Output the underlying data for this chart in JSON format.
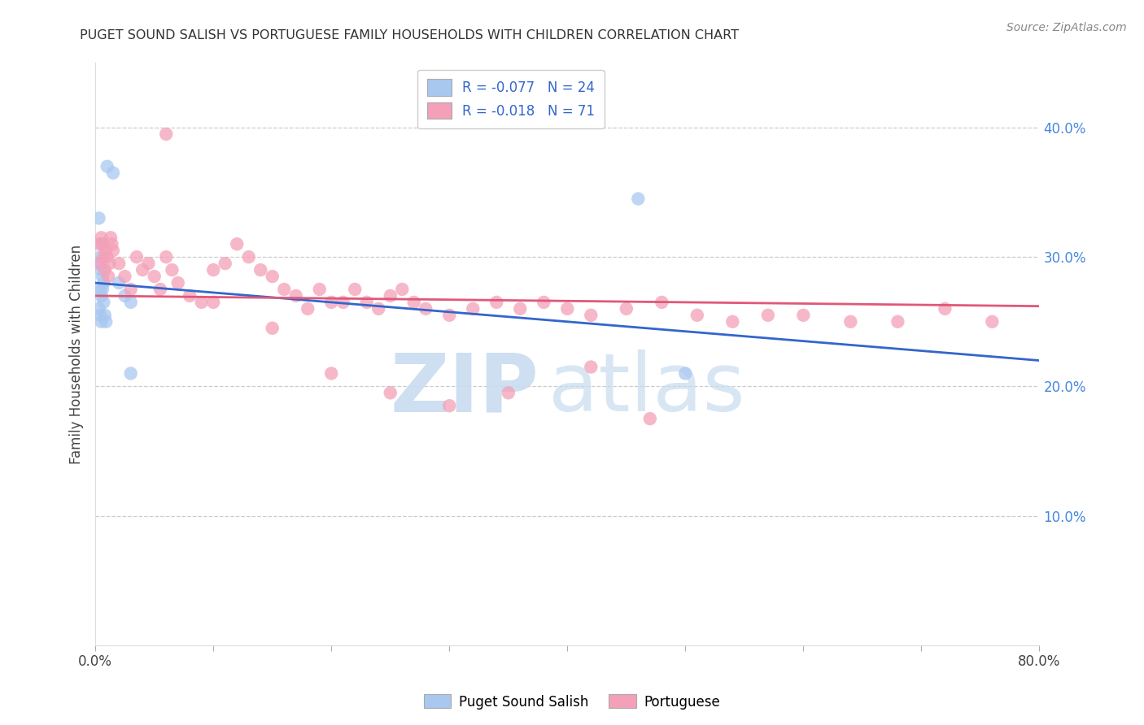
{
  "title": "PUGET SOUND SALISH VS PORTUGUESE FAMILY HOUSEHOLDS WITH CHILDREN CORRELATION CHART",
  "source_text": "Source: ZipAtlas.com",
  "ylabel": "Family Households with Children",
  "legend_blue_r": "R = -0.077",
  "legend_blue_n": "N = 24",
  "legend_pink_r": "R = -0.018",
  "legend_pink_n": "N = 71",
  "blue_label": "Puget Sound Salish",
  "pink_label": "Portuguese",
  "blue_color": "#a8c8f0",
  "pink_color": "#f4a0b8",
  "blue_line_color": "#3366cc",
  "pink_line_color": "#e05878",
  "xlim": [
    0.0,
    0.8
  ],
  "ylim": [
    0.0,
    0.45
  ],
  "right_yticks": [
    0.1,
    0.2,
    0.3,
    0.4
  ],
  "right_yticklabels": [
    "10.0%",
    "20.0%",
    "30.0%",
    "40.0%"
  ],
  "xticks": [
    0.0,
    0.1,
    0.2,
    0.3,
    0.4,
    0.5,
    0.6,
    0.7,
    0.8
  ],
  "xticklabels": [
    "0.0%",
    "",
    "",
    "",
    "",
    "",
    "",
    "",
    "80.0%"
  ],
  "watermark_zip": "ZIP",
  "watermark_atlas": "atlas",
  "blue_scatter_x": [
    0.01,
    0.015,
    0.003,
    0.006,
    0.004,
    0.003,
    0.005,
    0.006,
    0.007,
    0.004,
    0.005,
    0.006,
    0.003,
    0.004,
    0.005,
    0.007,
    0.008,
    0.009,
    0.02,
    0.025,
    0.46,
    0.03,
    0.5,
    0.03
  ],
  "blue_scatter_y": [
    0.37,
    0.365,
    0.33,
    0.31,
    0.3,
    0.295,
    0.29,
    0.285,
    0.28,
    0.275,
    0.27,
    0.275,
    0.26,
    0.255,
    0.25,
    0.265,
    0.255,
    0.25,
    0.28,
    0.27,
    0.345,
    0.21,
    0.21,
    0.265
  ],
  "pink_scatter_x": [
    0.003,
    0.004,
    0.06,
    0.005,
    0.006,
    0.007,
    0.008,
    0.009,
    0.01,
    0.011,
    0.012,
    0.013,
    0.014,
    0.015,
    0.02,
    0.025,
    0.03,
    0.035,
    0.04,
    0.045,
    0.05,
    0.055,
    0.06,
    0.065,
    0.07,
    0.08,
    0.09,
    0.1,
    0.11,
    0.12,
    0.13,
    0.14,
    0.15,
    0.16,
    0.17,
    0.18,
    0.19,
    0.2,
    0.21,
    0.22,
    0.23,
    0.24,
    0.25,
    0.26,
    0.27,
    0.28,
    0.3,
    0.32,
    0.34,
    0.36,
    0.38,
    0.4,
    0.42,
    0.45,
    0.48,
    0.51,
    0.54,
    0.57,
    0.6,
    0.64,
    0.68,
    0.72,
    0.76,
    0.1,
    0.15,
    0.2,
    0.25,
    0.3,
    0.35,
    0.42,
    0.47
  ],
  "pink_scatter_y": [
    0.31,
    0.295,
    0.395,
    0.315,
    0.31,
    0.3,
    0.29,
    0.305,
    0.3,
    0.285,
    0.295,
    0.315,
    0.31,
    0.305,
    0.295,
    0.285,
    0.275,
    0.3,
    0.29,
    0.295,
    0.285,
    0.275,
    0.3,
    0.29,
    0.28,
    0.27,
    0.265,
    0.29,
    0.295,
    0.31,
    0.3,
    0.29,
    0.285,
    0.275,
    0.27,
    0.26,
    0.275,
    0.265,
    0.265,
    0.275,
    0.265,
    0.26,
    0.27,
    0.275,
    0.265,
    0.26,
    0.255,
    0.26,
    0.265,
    0.26,
    0.265,
    0.26,
    0.255,
    0.26,
    0.265,
    0.255,
    0.25,
    0.255,
    0.255,
    0.25,
    0.25,
    0.26,
    0.25,
    0.265,
    0.245,
    0.21,
    0.195,
    0.185,
    0.195,
    0.215,
    0.175
  ],
  "blue_trend_x0": 0.0,
  "blue_trend_x1": 0.8,
  "blue_trend_y0": 0.28,
  "blue_trend_y1": 0.22,
  "pink_trend_x0": 0.0,
  "pink_trend_x1": 0.8,
  "pink_trend_y0": 0.27,
  "pink_trend_y1": 0.262
}
